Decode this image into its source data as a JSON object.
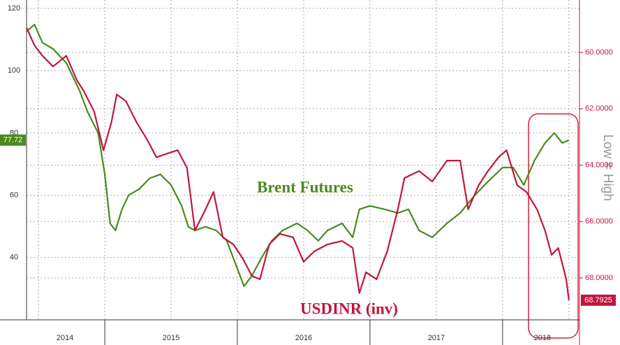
{
  "chart_data": {
    "type": "line",
    "y2_label": "Low = High",
    "xlim": [
      2014.41,
      2018.58
    ],
    "xticks": [
      {
        "value": 2014.7,
        "label": "2014"
      },
      {
        "value": 2015.5,
        "label": "2015"
      },
      {
        "value": 2016.5,
        "label": "2016"
      },
      {
        "value": 2017.5,
        "label": "2017"
      },
      {
        "value": 2018.3,
        "label": "2018"
      }
    ],
    "ylim": [
      20,
      122.7
    ],
    "yticks": [
      40,
      60,
      80,
      100,
      120
    ],
    "y2lim": [
      69.49,
      58.14
    ],
    "y2ticks": [
      {
        "value": 60,
        "label": "60.0000"
      },
      {
        "value": 62,
        "label": "62.0000"
      },
      {
        "value": 64,
        "label": "64.0000"
      },
      {
        "value": 66,
        "label": "66.0000"
      },
      {
        "value": 68,
        "label": "68.0000"
      }
    ],
    "grid": true,
    "series": [
      {
        "name": "Brent Futures",
        "color": "#4a8a1c",
        "axis": "y",
        "last_label": "77.72",
        "x": [
          2014.41,
          2014.47,
          2014.53,
          2014.61,
          2014.71,
          2014.81,
          2014.87,
          2014.95,
          2015.0,
          2015.04,
          2015.08,
          2015.13,
          2015.18,
          2015.26,
          2015.34,
          2015.42,
          2015.5,
          2015.58,
          2015.63,
          2015.68,
          2015.76,
          2015.84,
          2015.92,
          2016.0,
          2016.05,
          2016.11,
          2016.18,
          2016.26,
          2016.34,
          2016.45,
          2016.53,
          2016.61,
          2016.68,
          2016.79,
          2016.87,
          2016.92,
          2017.0,
          2017.11,
          2017.21,
          2017.29,
          2017.37,
          2017.47,
          2017.58,
          2017.68,
          2017.79,
          2017.89,
          2018.0,
          2018.08,
          2018.16,
          2018.24,
          2018.32,
          2018.39,
          2018.45,
          2018.5
        ],
        "values": [
          112.6,
          114.8,
          109,
          107,
          102.5,
          93.6,
          86.8,
          80,
          66.7,
          51,
          48.7,
          55.5,
          60,
          62,
          65.5,
          66.7,
          63.3,
          56.6,
          49.9,
          48.7,
          49.9,
          48.7,
          45.4,
          36.4,
          30.8,
          34.2,
          39.8,
          45.4,
          48.7,
          51,
          48.7,
          45.4,
          48.7,
          51,
          46.5,
          55.5,
          56.6,
          55.5,
          54.3,
          55.5,
          48.7,
          46.5,
          51,
          54.3,
          60,
          64.4,
          68.9,
          68.9,
          63.3,
          71.1,
          76.8,
          80,
          76.8,
          77.72
        ]
      },
      {
        "name": "USDINR (inv)",
        "color": "#c0163e",
        "axis": "y2",
        "last_label": "68.7925",
        "x": [
          2014.41,
          2014.47,
          2014.53,
          2014.61,
          2014.71,
          2014.79,
          2014.84,
          2014.92,
          2014.99,
          2015.05,
          2015.09,
          2015.16,
          2015.24,
          2015.32,
          2015.39,
          2015.47,
          2015.55,
          2015.62,
          2015.68,
          2015.76,
          2015.82,
          2015.89,
          2015.97,
          2016.04,
          2016.11,
          2016.17,
          2016.24,
          2016.32,
          2016.42,
          2016.5,
          2016.58,
          2016.68,
          2016.79,
          2016.87,
          2016.92,
          2016.97,
          2017.05,
          2017.13,
          2017.21,
          2017.26,
          2017.37,
          2017.47,
          2017.58,
          2017.68,
          2017.74,
          2017.82,
          2017.89,
          2017.97,
          2018.03,
          2018.11,
          2018.18,
          2018.26,
          2018.32,
          2018.37,
          2018.42,
          2018.48,
          2018.5
        ],
        "values": [
          59.13,
          59.75,
          60.12,
          60.5,
          60.12,
          60.99,
          61.36,
          62.1,
          63.47,
          62.48,
          61.49,
          61.73,
          62.48,
          63.1,
          63.72,
          63.59,
          63.47,
          64.09,
          66.32,
          65.57,
          64.95,
          66.56,
          66.81,
          67.31,
          67.93,
          68.05,
          66.81,
          66.44,
          66.56,
          67.43,
          67.06,
          66.81,
          66.69,
          66.94,
          68.54,
          67.8,
          68.05,
          67.06,
          65.57,
          64.46,
          64.21,
          64.58,
          63.84,
          63.84,
          65.57,
          64.71,
          64.21,
          63.72,
          63.47,
          64.71,
          64.95,
          65.57,
          66.32,
          67.18,
          66.94,
          68.05,
          68.7925
        ]
      }
    ]
  }
}
